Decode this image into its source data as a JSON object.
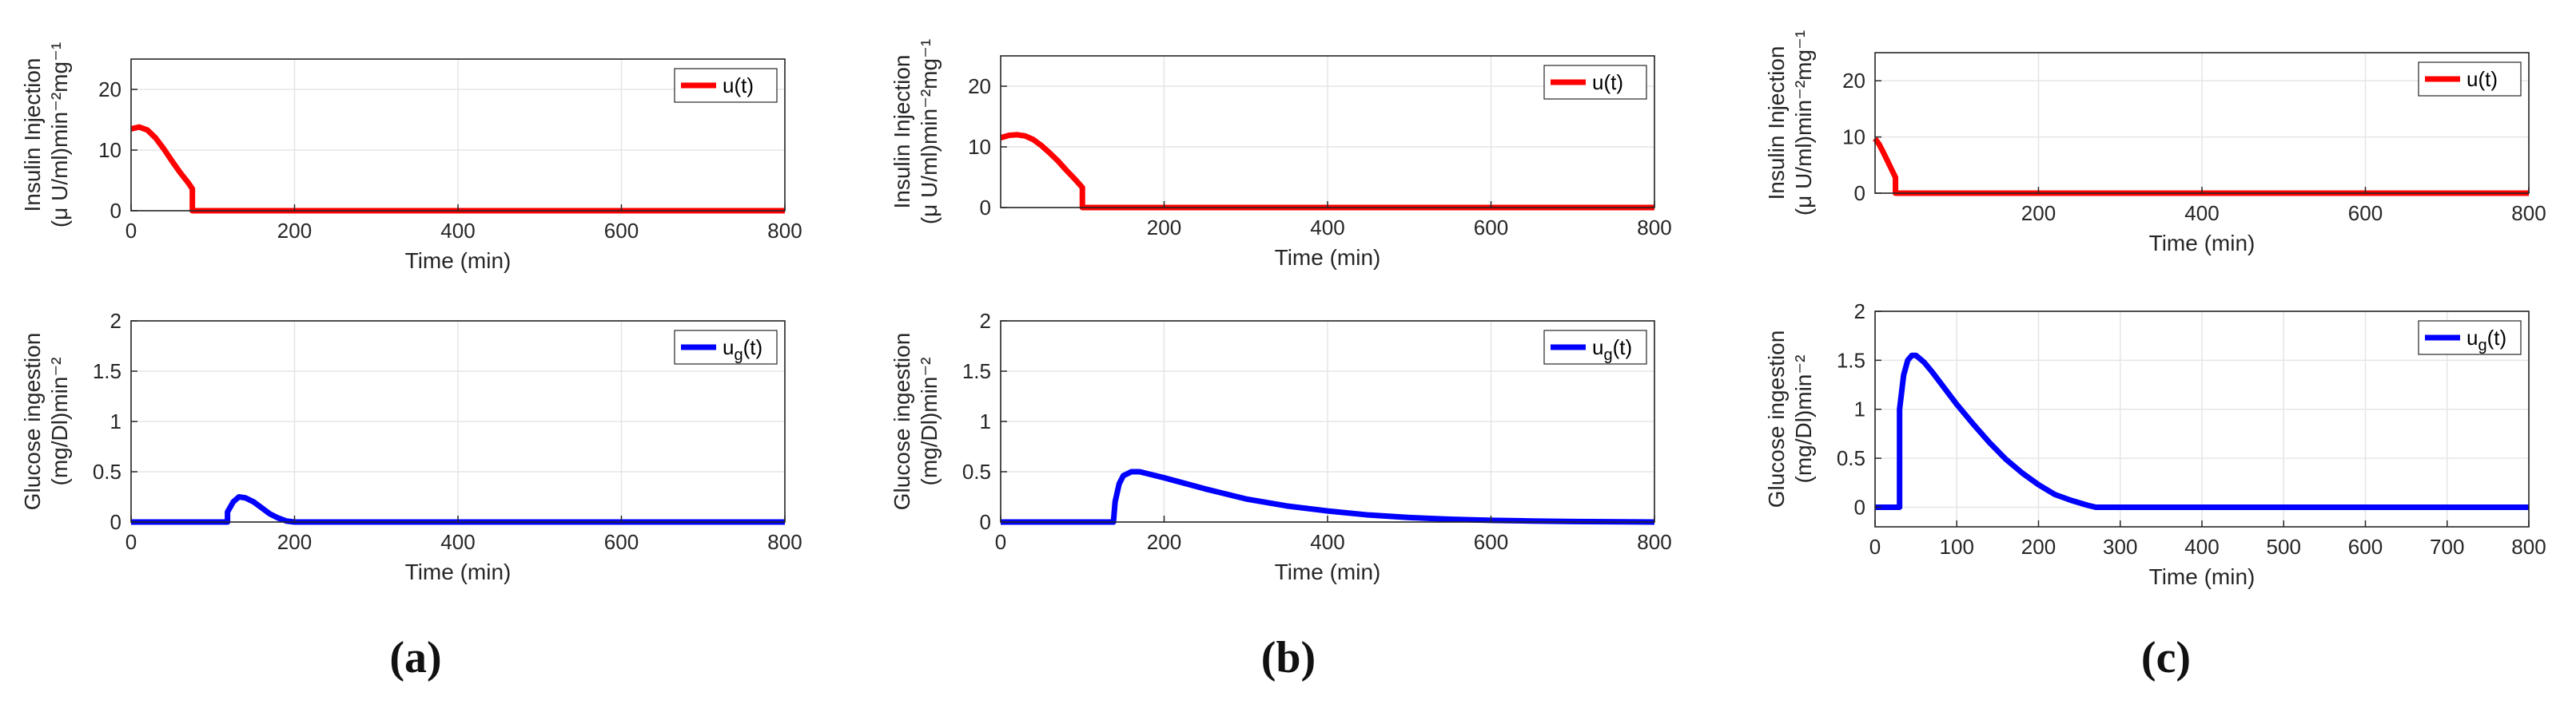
{
  "colors": {
    "insulin": "#ff0000",
    "glucose": "#0000ff",
    "grid": "#e6e6e6",
    "axis": "#262626"
  },
  "captions": [
    "(a)",
    "(b)",
    "(c)"
  ],
  "chart_data": [
    {
      "id": "a-insulin",
      "type": "line",
      "panel": "a",
      "xlabel": "Time (min)",
      "ylabel_lines": [
        "Insulin Injection",
        "(μ U/ml)min⁻²mg⁻¹"
      ],
      "xlim": [
        0,
        800
      ],
      "ylim": [
        0,
        25
      ],
      "xticks": [
        0,
        200,
        400,
        600,
        800
      ],
      "yticks": [
        0,
        10,
        20
      ],
      "series": [
        {
          "name": "u(t)",
          "color": "#ff0000",
          "x": [
            0,
            10,
            20,
            30,
            40,
            50,
            60,
            70,
            75,
            75,
            800
          ],
          "y": [
            13.5,
            13.8,
            13.3,
            12,
            10.2,
            8.2,
            6.3,
            4.6,
            3.6,
            0,
            0
          ]
        }
      ]
    },
    {
      "id": "a-glucose",
      "type": "line",
      "panel": "a",
      "xlabel": "Time (min)",
      "ylabel_lines": [
        "Glucose ingestion",
        "(mg/Dl)min⁻²"
      ],
      "xlim": [
        0,
        800
      ],
      "ylim": [
        0,
        2
      ],
      "xticks": [
        0,
        200,
        400,
        600,
        800
      ],
      "yticks": [
        0,
        0.5,
        1,
        1.5,
        2
      ],
      "series": [
        {
          "name": "u_g(t)",
          "color": "#0000ff",
          "x": [
            0,
            118,
            118,
            125,
            132,
            140,
            150,
            160,
            170,
            180,
            190,
            200,
            800
          ],
          "y": [
            0,
            0,
            0.1,
            0.2,
            0.25,
            0.24,
            0.2,
            0.14,
            0.08,
            0.04,
            0.01,
            0,
            0
          ]
        }
      ]
    },
    {
      "id": "b-insulin",
      "type": "line",
      "panel": "b",
      "xlabel": "Time (min)",
      "ylabel_lines": [
        "Insulin Injection",
        "(μ U/ml)min⁻²mg⁻¹"
      ],
      "xlim": [
        0,
        800
      ],
      "ylim": [
        0,
        25
      ],
      "xticks": [
        200,
        400,
        600,
        800
      ],
      "yticks": [
        0,
        10,
        20
      ],
      "series": [
        {
          "name": "u(t)",
          "color": "#ff0000",
          "x": [
            0,
            10,
            20,
            30,
            40,
            50,
            60,
            70,
            80,
            90,
            100,
            100,
            800
          ],
          "y": [
            11.5,
            11.9,
            12,
            11.8,
            11.2,
            10.2,
            9,
            7.7,
            6.2,
            4.8,
            3.3,
            0,
            0
          ]
        }
      ]
    },
    {
      "id": "b-glucose",
      "type": "line",
      "panel": "b",
      "xlabel": "Time (min)",
      "ylabel_lines": [
        "Glucose ingestion",
        "(mg/Dl)min⁻²"
      ],
      "xlim": [
        0,
        800
      ],
      "ylim": [
        0,
        2
      ],
      "xticks": [
        0,
        200,
        400,
        600,
        800
      ],
      "yticks": [
        0,
        0.5,
        1,
        1.5,
        2
      ],
      "series": [
        {
          "name": "u_g(t)",
          "color": "#0000ff",
          "x": [
            0,
            138,
            140,
            145,
            150,
            160,
            170,
            180,
            200,
            250,
            300,
            350,
            400,
            450,
            500,
            550,
            600,
            650,
            700,
            800
          ],
          "y": [
            0,
            0,
            0.2,
            0.38,
            0.46,
            0.5,
            0.5,
            0.48,
            0.44,
            0.33,
            0.23,
            0.16,
            0.11,
            0.07,
            0.045,
            0.028,
            0.017,
            0.01,
            0.005,
            0
          ]
        }
      ]
    },
    {
      "id": "c-insulin",
      "type": "line",
      "panel": "c",
      "xlabel": "Time (min)",
      "ylabel_lines": [
        "Insulin Injection",
        "(μ U/ml)min⁻²mg⁻¹"
      ],
      "xlim": [
        0,
        800
      ],
      "ylim": [
        0,
        25
      ],
      "xticks": [
        200,
        400,
        600,
        800
      ],
      "yticks": [
        0,
        10,
        20
      ],
      "series": [
        {
          "name": "u(t)",
          "color": "#ff0000",
          "x": [
            0,
            5,
            10,
            15,
            20,
            25,
            25,
            800
          ],
          "y": [
            9.7,
            8.7,
            7.3,
            5.8,
            4.3,
            2.8,
            0,
            0
          ]
        }
      ]
    },
    {
      "id": "c-glucose",
      "type": "line",
      "panel": "c",
      "xlabel": "Time (min)",
      "ylabel_lines": [
        "Glucose ingestion",
        "(mg/Dl)min⁻²"
      ],
      "xlim": [
        0,
        800
      ],
      "ylim": [
        -0.2,
        2
      ],
      "xticks": [
        0,
        100,
        200,
        300,
        400,
        500,
        600,
        700,
        800
      ],
      "yticks": [
        0,
        0.5,
        1,
        1.5,
        2
      ],
      "series": [
        {
          "name": "u_g(t)",
          "color": "#0000ff",
          "x": [
            0,
            30,
            30,
            35,
            40,
            45,
            50,
            60,
            70,
            80,
            100,
            120,
            140,
            160,
            180,
            200,
            220,
            240,
            260,
            270,
            800
          ],
          "y": [
            0,
            0,
            1.0,
            1.35,
            1.5,
            1.55,
            1.55,
            1.48,
            1.38,
            1.27,
            1.05,
            0.85,
            0.66,
            0.49,
            0.35,
            0.23,
            0.13,
            0.07,
            0.02,
            0,
            0
          ]
        }
      ]
    }
  ]
}
